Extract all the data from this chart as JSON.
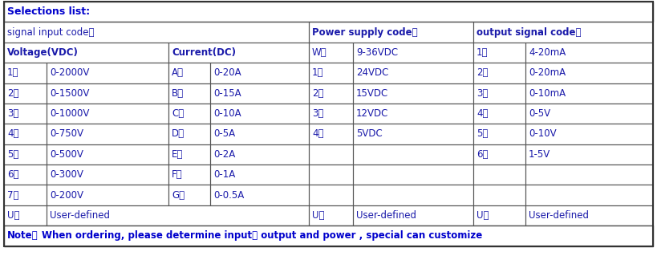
{
  "title": "Selections list:",
  "title_color": "#0000CC",
  "text_color": "#1a1aaa",
  "bold_text_color": "#0000BB",
  "border_color": "#555555",
  "bg_color": "#FFFFFF",
  "note_text": "When ordering, please determine input、 output and power , special can customize",
  "note_label": "Note：",
  "sections": {
    "signal_input": "signal input code：",
    "power_supply": "Power supply code：",
    "output_signal": "output signal code："
  },
  "voltage_header": "Voltage(VDC)",
  "current_header": "Current(DC)",
  "voltage_data": [
    [
      "1：",
      "0-2000V"
    ],
    [
      "2：",
      "0-1500V"
    ],
    [
      "3：",
      "0-1000V"
    ],
    [
      "4：",
      "0-750V"
    ],
    [
      "5：",
      "0-500V"
    ],
    [
      "6：",
      "0-300V"
    ],
    [
      "7：",
      "0-200V"
    ]
  ],
  "current_data": [
    [
      "A：",
      "0-20A"
    ],
    [
      "B：",
      "0-15A"
    ],
    [
      "C：",
      "0-10A"
    ],
    [
      "D：",
      "0-5A"
    ],
    [
      "E：",
      "0-2A"
    ],
    [
      "F：",
      "0-1A"
    ],
    [
      "G：",
      "0-0.5A"
    ]
  ],
  "power_header": [
    "W：",
    "9-36VDC"
  ],
  "power_data": [
    [
      "1：",
      "24VDC"
    ],
    [
      "2：",
      "15VDC"
    ],
    [
      "3：",
      "12VDC"
    ],
    [
      "4：",
      "5VDC"
    ],
    [
      "",
      ""
    ],
    [
      "",
      ""
    ],
    [
      "",
      ""
    ]
  ],
  "output_header": [
    "1：",
    "4-20mA"
  ],
  "output_data": [
    [
      "2：",
      "0-20mA"
    ],
    [
      "3：",
      "0-10mA"
    ],
    [
      "4：",
      "0-5V"
    ],
    [
      "5：",
      "0-10V"
    ],
    [
      "6：",
      "1-5V"
    ],
    [
      "",
      ""
    ],
    [
      "",
      ""
    ]
  ],
  "user_row": {
    "vol_key": "U：",
    "vol_val": "User-defined",
    "pow_key": "U：",
    "pow_val": "User-defined",
    "out_key": "U：",
    "out_val": "User-defined"
  },
  "figsize": [
    8.19,
    3.34
  ],
  "dpi": 100
}
